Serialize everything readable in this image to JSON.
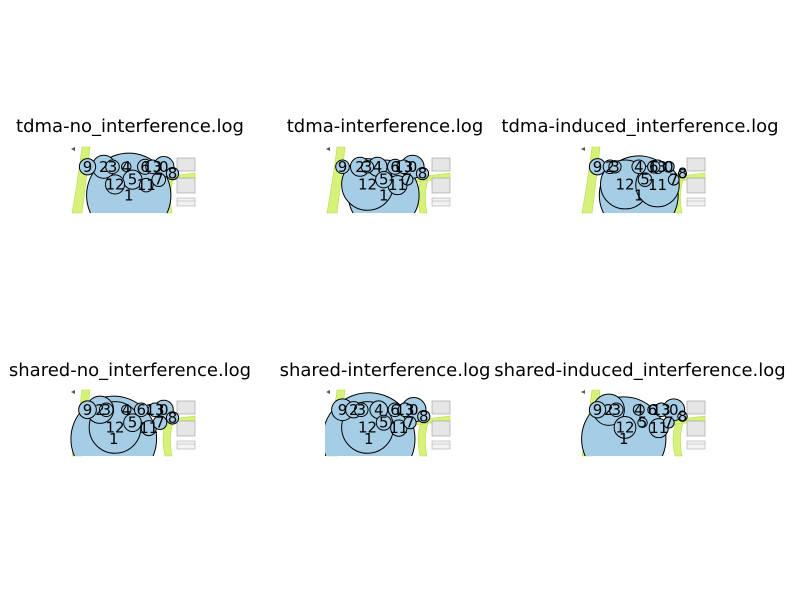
{
  "chart_data": [
    {
      "type": "bubble-map",
      "title": "tdma-no_interference.log",
      "nodes": [
        {
          "label": "1",
          "x": 0.47,
          "y": 0.26,
          "r": 0.62
        },
        {
          "label": "9",
          "x": 0.14,
          "y": 0.68,
          "r": 0.12
        },
        {
          "label": "2",
          "x": 0.27,
          "y": 0.68,
          "r": 0.17
        },
        {
          "label": "3",
          "x": 0.34,
          "y": 0.68,
          "r": 0.1
        },
        {
          "label": "4",
          "x": 0.45,
          "y": 0.68,
          "r": 0.07
        },
        {
          "label": "6",
          "x": 0.6,
          "y": 0.68,
          "r": 0.11
        },
        {
          "label": "13",
          "x": 0.66,
          "y": 0.68,
          "r": 0.1
        },
        {
          "label": "0",
          "x": 0.75,
          "y": 0.68,
          "r": 0.15
        },
        {
          "label": "8",
          "x": 0.82,
          "y": 0.58,
          "r": 0.09
        },
        {
          "label": "7",
          "x": 0.71,
          "y": 0.49,
          "r": 0.1
        },
        {
          "label": "5",
          "x": 0.5,
          "y": 0.49,
          "r": 0.14
        },
        {
          "label": "12",
          "x": 0.36,
          "y": 0.42,
          "r": 0.14
        },
        {
          "label": "11",
          "x": 0.61,
          "y": 0.41,
          "r": 0.1
        }
      ]
    },
    {
      "type": "bubble-map",
      "title": "tdma-interference.log",
      "nodes": [
        {
          "label": "1",
          "x": 0.47,
          "y": 0.26,
          "r": 0.52
        },
        {
          "label": "9",
          "x": 0.14,
          "y": 0.68,
          "r": 0.1
        },
        {
          "label": "2",
          "x": 0.28,
          "y": 0.68,
          "r": 0.14
        },
        {
          "label": "3",
          "x": 0.34,
          "y": 0.68,
          "r": 0.09
        },
        {
          "label": "4",
          "x": 0.42,
          "y": 0.68,
          "r": 0.14
        },
        {
          "label": "6",
          "x": 0.56,
          "y": 0.68,
          "r": 0.11
        },
        {
          "label": "13",
          "x": 0.63,
          "y": 0.68,
          "r": 0.1
        },
        {
          "label": "0",
          "x": 0.7,
          "y": 0.68,
          "r": 0.17
        },
        {
          "label": "8",
          "x": 0.78,
          "y": 0.58,
          "r": 0.09
        },
        {
          "label": "7",
          "x": 0.66,
          "y": 0.49,
          "r": 0.08
        },
        {
          "label": "5",
          "x": 0.47,
          "y": 0.49,
          "r": 0.12
        },
        {
          "label": "12",
          "x": 0.34,
          "y": 0.42,
          "r": 0.38
        },
        {
          "label": "11",
          "x": 0.58,
          "y": 0.41,
          "r": 0.14
        }
      ]
    },
    {
      "type": "bubble-map",
      "title": "tdma-induced_interference.log",
      "nodes": [
        {
          "label": "1",
          "x": 0.47,
          "y": 0.26,
          "r": 0.58
        },
        {
          "label": "9",
          "x": 0.14,
          "y": 0.68,
          "r": 0.12
        },
        {
          "label": "2",
          "x": 0.24,
          "y": 0.68,
          "r": 0.1
        },
        {
          "label": "3",
          "x": 0.28,
          "y": 0.68,
          "r": 0.09
        },
        {
          "label": "4",
          "x": 0.47,
          "y": 0.68,
          "r": 0.1
        },
        {
          "label": "6",
          "x": 0.59,
          "y": 0.68,
          "r": 0.09
        },
        {
          "label": "13",
          "x": 0.62,
          "y": 0.68,
          "r": 0.1
        },
        {
          "label": "0",
          "x": 0.71,
          "y": 0.68,
          "r": 0.08
        },
        {
          "label": "8",
          "x": 0.82,
          "y": 0.58,
          "r": 0.06
        },
        {
          "label": "7",
          "x": 0.75,
          "y": 0.49,
          "r": 0.08
        },
        {
          "label": "5",
          "x": 0.52,
          "y": 0.49,
          "r": 0.1
        },
        {
          "label": "12",
          "x": 0.36,
          "y": 0.42,
          "r": 0.36
        },
        {
          "label": "11",
          "x": 0.62,
          "y": 0.41,
          "r": 0.32
        }
      ]
    },
    {
      "type": "bubble-map",
      "title": "shared-no_interference.log",
      "nodes": [
        {
          "label": "1",
          "x": 0.35,
          "y": 0.25,
          "r": 0.63
        },
        {
          "label": "9",
          "x": 0.14,
          "y": 0.68,
          "r": 0.13
        },
        {
          "label": "2",
          "x": 0.24,
          "y": 0.68,
          "r": 0.2
        },
        {
          "label": "3",
          "x": 0.29,
          "y": 0.68,
          "r": 0.1
        },
        {
          "label": "4",
          "x": 0.45,
          "y": 0.68,
          "r": 0.07
        },
        {
          "label": "6",
          "x": 0.57,
          "y": 0.68,
          "r": 0.1
        },
        {
          "label": "13",
          "x": 0.68,
          "y": 0.68,
          "r": 0.1
        },
        {
          "label": "0",
          "x": 0.75,
          "y": 0.68,
          "r": 0.14
        },
        {
          "label": "8",
          "x": 0.82,
          "y": 0.56,
          "r": 0.09
        },
        {
          "label": "7",
          "x": 0.72,
          "y": 0.49,
          "r": 0.1
        },
        {
          "label": "5",
          "x": 0.5,
          "y": 0.49,
          "r": 0.13
        },
        {
          "label": "12",
          "x": 0.36,
          "y": 0.42,
          "r": 0.38
        },
        {
          "label": "11",
          "x": 0.63,
          "y": 0.41,
          "r": 0.11
        }
      ]
    },
    {
      "type": "bubble-map",
      "title": "shared-interference.log",
      "nodes": [
        {
          "label": "1",
          "x": 0.35,
          "y": 0.25,
          "r": 0.68
        },
        {
          "label": "9",
          "x": 0.14,
          "y": 0.68,
          "r": 0.16
        },
        {
          "label": "2",
          "x": 0.23,
          "y": 0.68,
          "r": 0.12
        },
        {
          "label": "3",
          "x": 0.29,
          "y": 0.68,
          "r": 0.1
        },
        {
          "label": "4",
          "x": 0.43,
          "y": 0.68,
          "r": 0.13
        },
        {
          "label": "6",
          "x": 0.56,
          "y": 0.68,
          "r": 0.1
        },
        {
          "label": "13",
          "x": 0.64,
          "y": 0.68,
          "r": 0.1
        },
        {
          "label": "0",
          "x": 0.71,
          "y": 0.68,
          "r": 0.18
        },
        {
          "label": "8",
          "x": 0.79,
          "y": 0.58,
          "r": 0.09
        },
        {
          "label": "7",
          "x": 0.68,
          "y": 0.49,
          "r": 0.09
        },
        {
          "label": "5",
          "x": 0.47,
          "y": 0.49,
          "r": 0.11
        },
        {
          "label": "12",
          "x": 0.34,
          "y": 0.42,
          "r": 0.38
        },
        {
          "label": "11",
          "x": 0.59,
          "y": 0.41,
          "r": 0.12
        }
      ]
    },
    {
      "type": "bubble-map",
      "title": "shared-induced_interference.log",
      "nodes": [
        {
          "label": "1",
          "x": 0.35,
          "y": 0.25,
          "r": 0.62
        },
        {
          "label": "9",
          "x": 0.14,
          "y": 0.68,
          "r": 0.12
        },
        {
          "label": "2",
          "x": 0.23,
          "y": 0.68,
          "r": 0.23
        },
        {
          "label": "3",
          "x": 0.29,
          "y": 0.68,
          "r": 0.1
        },
        {
          "label": "4",
          "x": 0.47,
          "y": 0.68,
          "r": 0.08
        },
        {
          "label": "6",
          "x": 0.58,
          "y": 0.68,
          "r": 0.07
        },
        {
          "label": "13",
          "x": 0.65,
          "y": 0.68,
          "r": 0.1
        },
        {
          "label": "0",
          "x": 0.75,
          "y": 0.68,
          "r": 0.16
        },
        {
          "label": "8",
          "x": 0.82,
          "y": 0.58,
          "r": 0.07
        },
        {
          "label": "7",
          "x": 0.71,
          "y": 0.49,
          "r": 0.08
        },
        {
          "label": "5",
          "x": 0.5,
          "y": 0.49,
          "r": 0.07
        },
        {
          "label": "12",
          "x": 0.36,
          "y": 0.42,
          "r": 0.16
        },
        {
          "label": "11",
          "x": 0.63,
          "y": 0.41,
          "r": 0.14
        }
      ]
    }
  ],
  "colors": {
    "bubble_fill": "#a6cde6",
    "bubble_stroke": "#000000",
    "map_green": "#d7f27a",
    "map_green_dark": "#b8d94a",
    "map_gray": "#e6e6e6",
    "map_gray_line": "#9a9a9a"
  }
}
